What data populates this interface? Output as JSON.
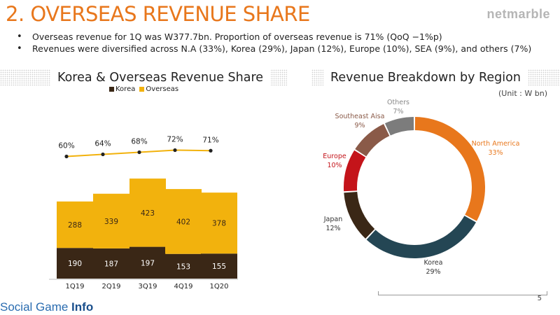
{
  "title": "2. OVERSEAS REVENUE SHARE",
  "brand": "netmarble",
  "bullets": [
    "Overseas revenue for 1Q was W377.7bn. Proportion of overseas revenue is 71% (QoQ −1%p)",
    "Revenues were diversified across N.A (33%), Korea (29%), Japan (12%), Europe (10%), SEA (9%), and others (7%)"
  ],
  "left_panel": {
    "title": "Korea & Overseas Revenue Share"
  },
  "right_panel": {
    "title": "Revenue Breakdown by Region",
    "unit": "(Unit : W bn)"
  },
  "chart_data": [
    {
      "type": "bar",
      "stacked": true,
      "categories": [
        "1Q19",
        "2Q19",
        "3Q19",
        "4Q19",
        "1Q20"
      ],
      "series": [
        {
          "name": "Korea",
          "values": [
            190,
            187,
            197,
            153,
            155
          ],
          "color": "#3a2716"
        },
        {
          "name": "Overseas",
          "values": [
            288,
            339,
            423,
            402,
            378
          ],
          "color": "#f2b20d"
        }
      ],
      "overlay_line": {
        "values": [
          60,
          64,
          68,
          72,
          71
        ],
        "labels": [
          "60%",
          "64%",
          "68%",
          "72%",
          "71%"
        ],
        "color": "#f2b20d"
      },
      "legend_position": "top",
      "grid": false
    },
    {
      "type": "pie",
      "donut": true,
      "slices": [
        {
          "label": "North America",
          "value": 33,
          "value_label": "33%",
          "color": "#e8771c",
          "label_color": "#e8771c"
        },
        {
          "label": "Korea",
          "value": 29,
          "value_label": "29%",
          "color": "#244654",
          "label_color": "#333333"
        },
        {
          "label": "Japan",
          "value": 12,
          "value_label": "12%",
          "color": "#3a2716",
          "label_color": "#333333"
        },
        {
          "label": "Europe",
          "value": 10,
          "value_label": "10%",
          "color": "#c4141a",
          "label_color": "#c4141a"
        },
        {
          "label": "Southeast Aisa",
          "value": 9,
          "value_label": "9%",
          "color": "#8a5a48",
          "label_color": "#8a5a48"
        },
        {
          "label": "Others",
          "value": 7,
          "value_label": "7%",
          "color": "#7c7c7c",
          "label_color": "#888888"
        }
      ]
    }
  ],
  "watermark": {
    "part1": "Social Game ",
    "part2": "Info"
  },
  "page_number": "5"
}
